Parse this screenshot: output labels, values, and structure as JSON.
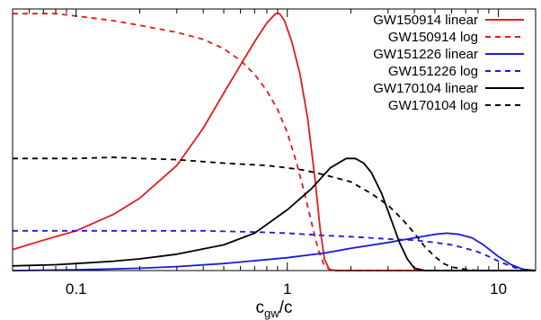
{
  "chart_data": {
    "type": "line",
    "title": "",
    "xlabel": "c",
    "xlabel_sub": "gw",
    "xlabel_tail": "/c",
    "ylabel": "",
    "xscale": "log",
    "xlim": [
      0.05,
      15
    ],
    "ylim": [
      0,
      1.12
    ],
    "x_ticks": [
      {
        "value": 0.1,
        "label": "0.1"
      },
      {
        "value": 1,
        "label": "1"
      },
      {
        "value": 10,
        "label": "10"
      }
    ],
    "y_tick_labels": false,
    "grid": false,
    "legend_position": "top-right",
    "series": [
      {
        "name": "GW150914 linear",
        "color": "#e41a1c",
        "dash": "solid",
        "x": [
          0.05,
          0.07,
          0.1,
          0.15,
          0.2,
          0.3,
          0.4,
          0.5,
          0.6,
          0.7,
          0.8,
          0.88,
          0.92,
          0.97,
          1.05,
          1.15,
          1.25,
          1.35,
          1.43,
          1.5,
          1.58,
          1.7,
          2,
          4,
          15
        ],
        "y": [
          0.09,
          0.13,
          0.17,
          0.24,
          0.31,
          0.45,
          0.61,
          0.76,
          0.88,
          0.98,
          1.06,
          1.1,
          1.1,
          1.07,
          0.98,
          0.84,
          0.65,
          0.4,
          0.18,
          0.05,
          0.005,
          0,
          0,
          0,
          0
        ]
      },
      {
        "name": "GW150914 log",
        "color": "#e41a1c",
        "dash": "dashed",
        "x": [
          0.05,
          0.08,
          0.1,
          0.15,
          0.2,
          0.3,
          0.4,
          0.5,
          0.6,
          0.7,
          0.8,
          0.9,
          1.0,
          1.1,
          1.2,
          1.3,
          1.4,
          1.5,
          1.6,
          1.7,
          2,
          4,
          15
        ],
        "y": [
          1.1,
          1.1,
          1.09,
          1.07,
          1.05,
          1.02,
          0.99,
          0.95,
          0.9,
          0.84,
          0.77,
          0.69,
          0.59,
          0.47,
          0.34,
          0.21,
          0.09,
          0.02,
          0.003,
          0,
          0,
          0,
          0
        ]
      },
      {
        "name": "GW151226 linear",
        "color": "#1a1adc",
        "dash": "solid",
        "x": [
          0.05,
          0.1,
          0.2,
          0.3,
          0.5,
          1,
          1.5,
          2,
          3,
          4,
          5,
          5.7,
          6.5,
          7.5,
          8.5,
          10,
          11.5,
          13,
          15
        ],
        "y": [
          0,
          0.003,
          0.01,
          0.017,
          0.03,
          0.055,
          0.075,
          0.095,
          0.12,
          0.14,
          0.155,
          0.16,
          0.155,
          0.14,
          0.11,
          0.06,
          0.025,
          0.006,
          0
        ]
      },
      {
        "name": "GW151226 log",
        "color": "#1a1adc",
        "dash": "dashed",
        "x": [
          0.05,
          0.1,
          0.2,
          0.4,
          0.7,
          1,
          1.5,
          2,
          3,
          4,
          5,
          6,
          7,
          8,
          9,
          10,
          11,
          12,
          13,
          14,
          15
        ],
        "y": [
          0.17,
          0.17,
          0.17,
          0.17,
          0.165,
          0.16,
          0.15,
          0.145,
          0.135,
          0.13,
          0.12,
          0.11,
          0.095,
          0.08,
          0.06,
          0.04,
          0.025,
          0.012,
          0.005,
          0.001,
          0
        ]
      },
      {
        "name": "GW170104 linear",
        "color": "#000000",
        "dash": "solid",
        "x": [
          0.05,
          0.08,
          0.1,
          0.15,
          0.2,
          0.3,
          0.5,
          0.7,
          1,
          1.3,
          1.6,
          1.9,
          2.1,
          2.3,
          2.5,
          2.8,
          3.1,
          3.4,
          3.7,
          4,
          4.5,
          5.5,
          15
        ],
        "y": [
          0.02,
          0.025,
          0.03,
          0.04,
          0.05,
          0.07,
          0.11,
          0.16,
          0.26,
          0.35,
          0.44,
          0.48,
          0.48,
          0.46,
          0.42,
          0.33,
          0.22,
          0.12,
          0.05,
          0.01,
          0,
          0,
          0
        ]
      },
      {
        "name": "GW170104 log",
        "color": "#000000",
        "dash": "dashed",
        "x": [
          0.05,
          0.1,
          0.15,
          0.2,
          0.3,
          0.5,
          0.8,
          1,
          1.2,
          1.5,
          2,
          2.5,
          3,
          3.5,
          4,
          4.5,
          5,
          5.5,
          6,
          7,
          8,
          15
        ],
        "y": [
          0.48,
          0.48,
          0.485,
          0.48,
          0.475,
          0.46,
          0.45,
          0.44,
          0.43,
          0.41,
          0.38,
          0.33,
          0.28,
          0.22,
          0.16,
          0.1,
          0.06,
          0.03,
          0.015,
          0.005,
          0,
          0
        ]
      }
    ]
  }
}
